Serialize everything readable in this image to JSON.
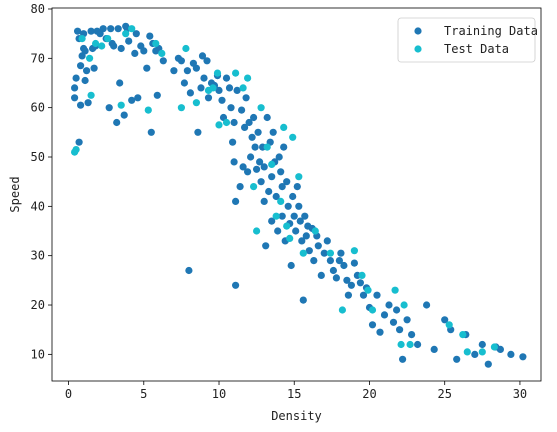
{
  "chart_data": {
    "type": "scatter",
    "title": "",
    "xlabel": "Density",
    "ylabel": "Speed",
    "xlim": [
      -1.1,
      31.4
    ],
    "ylim": [
      4.6,
      80.2
    ],
    "xticks": [
      0,
      5,
      10,
      15,
      20,
      25,
      30
    ],
    "yticks": [
      10,
      20,
      30,
      40,
      50,
      60,
      70,
      80
    ],
    "grid": false,
    "legend_position": "top-right",
    "series": [
      {
        "name": "Training Data",
        "color": "#1f77b4",
        "points": [
          [
            0.4,
            62
          ],
          [
            0.4,
            64
          ],
          [
            0.5,
            66
          ],
          [
            0.6,
            75.5
          ],
          [
            0.7,
            74
          ],
          [
            0.7,
            53
          ],
          [
            0.8,
            60.5
          ],
          [
            0.8,
            68.5
          ],
          [
            0.9,
            70.5
          ],
          [
            1.0,
            75
          ],
          [
            1.0,
            72
          ],
          [
            1.1,
            71.5
          ],
          [
            1.1,
            65.5
          ],
          [
            1.2,
            67.5
          ],
          [
            1.3,
            61
          ],
          [
            1.5,
            75.5
          ],
          [
            1.6,
            72
          ],
          [
            1.7,
            68
          ],
          [
            1.8,
            72.5
          ],
          [
            1.9,
            75.5
          ],
          [
            2.1,
            75
          ],
          [
            2.3,
            76
          ],
          [
            2.5,
            74
          ],
          [
            2.7,
            60
          ],
          [
            2.8,
            76
          ],
          [
            2.9,
            73
          ],
          [
            3.0,
            72.5
          ],
          [
            3.2,
            57
          ],
          [
            3.3,
            76
          ],
          [
            3.4,
            65
          ],
          [
            3.5,
            72
          ],
          [
            3.7,
            58.5
          ],
          [
            3.8,
            76.5
          ],
          [
            3.9,
            76
          ],
          [
            4.0,
            73.5
          ],
          [
            4.2,
            61.5
          ],
          [
            4.4,
            71
          ],
          [
            4.5,
            75
          ],
          [
            4.6,
            62
          ],
          [
            4.8,
            72.5
          ],
          [
            5.0,
            71.5
          ],
          [
            5.2,
            68
          ],
          [
            5.4,
            74.5
          ],
          [
            5.5,
            55
          ],
          [
            5.6,
            73
          ],
          [
            5.8,
            71.5
          ],
          [
            5.9,
            62.5
          ],
          [
            6.0,
            72
          ],
          [
            6.3,
            69.5
          ],
          [
            7.0,
            67.5
          ],
          [
            7.3,
            70
          ],
          [
            7.5,
            69.5
          ],
          [
            7.7,
            65
          ],
          [
            7.9,
            67.5
          ],
          [
            8.0,
            27
          ],
          [
            8.1,
            63
          ],
          [
            8.3,
            69
          ],
          [
            8.5,
            68
          ],
          [
            8.6,
            55
          ],
          [
            8.8,
            64
          ],
          [
            8.9,
            70.5
          ],
          [
            9.0,
            66
          ],
          [
            9.2,
            69.5
          ],
          [
            9.3,
            62
          ],
          [
            9.5,
            65
          ],
          [
            9.7,
            64.5
          ],
          [
            9.9,
            66.5
          ],
          [
            10.0,
            63.5
          ],
          [
            10.2,
            61.5
          ],
          [
            10.3,
            58
          ],
          [
            10.5,
            66
          ],
          [
            10.7,
            64
          ],
          [
            10.8,
            60
          ],
          [
            10.9,
            53
          ],
          [
            11.0,
            57
          ],
          [
            11.0,
            49
          ],
          [
            11.1,
            41
          ],
          [
            11.1,
            24
          ],
          [
            11.2,
            63.5
          ],
          [
            11.4,
            44
          ],
          [
            11.5,
            59.5
          ],
          [
            11.6,
            48
          ],
          [
            11.7,
            56
          ],
          [
            11.8,
            62
          ],
          [
            11.9,
            47
          ],
          [
            12.0,
            57
          ],
          [
            12.1,
            50
          ],
          [
            12.2,
            54
          ],
          [
            12.3,
            58
          ],
          [
            12.4,
            52
          ],
          [
            12.5,
            47.5
          ],
          [
            12.6,
            55
          ],
          [
            12.7,
            49
          ],
          [
            12.8,
            45
          ],
          [
            12.9,
            52
          ],
          [
            13.0,
            48
          ],
          [
            13.0,
            41
          ],
          [
            13.1,
            32
          ],
          [
            13.2,
            58
          ],
          [
            13.3,
            43
          ],
          [
            13.4,
            53
          ],
          [
            13.5,
            46
          ],
          [
            13.5,
            37
          ],
          [
            13.6,
            55
          ],
          [
            13.7,
            49
          ],
          [
            13.8,
            42
          ],
          [
            13.9,
            35
          ],
          [
            14.0,
            50
          ],
          [
            14.1,
            47
          ],
          [
            14.2,
            44
          ],
          [
            14.2,
            38
          ],
          [
            14.3,
            52
          ],
          [
            14.4,
            33
          ],
          [
            14.5,
            45
          ],
          [
            14.6,
            40
          ],
          [
            14.7,
            36.5
          ],
          [
            14.8,
            28
          ],
          [
            14.9,
            42
          ],
          [
            15.0,
            38
          ],
          [
            15.1,
            35
          ],
          [
            15.2,
            44
          ],
          [
            15.3,
            40
          ],
          [
            15.4,
            37
          ],
          [
            15.5,
            33
          ],
          [
            15.6,
            21
          ],
          [
            15.7,
            38
          ],
          [
            15.8,
            34
          ],
          [
            15.9,
            36
          ],
          [
            16.0,
            31
          ],
          [
            16.2,
            35.5
          ],
          [
            16.3,
            29
          ],
          [
            16.5,
            34
          ],
          [
            16.6,
            32
          ],
          [
            16.8,
            26
          ],
          [
            17.0,
            30.5
          ],
          [
            17.2,
            33
          ],
          [
            17.4,
            29
          ],
          [
            17.6,
            27
          ],
          [
            17.8,
            25.5
          ],
          [
            18.0,
            29
          ],
          [
            18.1,
            30.5
          ],
          [
            18.3,
            28
          ],
          [
            18.5,
            25
          ],
          [
            18.6,
            22
          ],
          [
            18.8,
            24
          ],
          [
            19.0,
            28.5
          ],
          [
            19.2,
            26
          ],
          [
            19.4,
            24.5
          ],
          [
            19.6,
            22
          ],
          [
            19.8,
            23.5
          ],
          [
            20.0,
            19.5
          ],
          [
            20.2,
            16
          ],
          [
            20.5,
            22
          ],
          [
            20.7,
            14.5
          ],
          [
            21.0,
            18
          ],
          [
            21.3,
            20
          ],
          [
            21.6,
            16.5
          ],
          [
            21.8,
            19
          ],
          [
            22.0,
            15
          ],
          [
            22.2,
            9
          ],
          [
            22.5,
            17
          ],
          [
            22.8,
            14
          ],
          [
            23.2,
            12
          ],
          [
            23.8,
            20
          ],
          [
            24.3,
            11
          ],
          [
            25.0,
            17
          ],
          [
            25.4,
            15
          ],
          [
            25.8,
            9
          ],
          [
            26.4,
            14
          ],
          [
            27.0,
            10
          ],
          [
            27.5,
            12
          ],
          [
            27.9,
            8
          ],
          [
            28.4,
            11.5
          ],
          [
            28.7,
            11
          ],
          [
            29.4,
            10
          ],
          [
            30.2,
            9.5
          ]
        ]
      },
      {
        "name": "Test Data",
        "color": "#17becf",
        "points": [
          [
            0.4,
            51
          ],
          [
            0.5,
            51.5
          ],
          [
            0.9,
            74
          ],
          [
            1.4,
            70
          ],
          [
            1.5,
            62.5
          ],
          [
            1.8,
            73
          ],
          [
            2.2,
            72.5
          ],
          [
            2.6,
            74
          ],
          [
            3.5,
            60.5
          ],
          [
            3.8,
            75
          ],
          [
            4.2,
            76
          ],
          [
            5.3,
            59.5
          ],
          [
            5.8,
            73
          ],
          [
            6.2,
            71
          ],
          [
            7.5,
            60
          ],
          [
            7.8,
            72
          ],
          [
            8.5,
            61
          ],
          [
            9.3,
            63.5
          ],
          [
            9.6,
            64
          ],
          [
            9.9,
            67
          ],
          [
            10.0,
            56.5
          ],
          [
            10.5,
            57
          ],
          [
            11.1,
            67
          ],
          [
            11.6,
            64
          ],
          [
            11.9,
            66
          ],
          [
            12.3,
            44
          ],
          [
            12.5,
            35
          ],
          [
            12.8,
            60
          ],
          [
            13.2,
            52
          ],
          [
            13.5,
            48.5
          ],
          [
            13.8,
            38
          ],
          [
            14.1,
            41
          ],
          [
            14.3,
            56
          ],
          [
            14.5,
            36
          ],
          [
            14.7,
            33.5
          ],
          [
            14.9,
            54
          ],
          [
            15.3,
            46
          ],
          [
            15.6,
            30.5
          ],
          [
            16.4,
            35
          ],
          [
            17.4,
            30.5
          ],
          [
            18.2,
            19
          ],
          [
            19.0,
            31
          ],
          [
            19.5,
            26
          ],
          [
            19.9,
            23
          ],
          [
            20.2,
            19
          ],
          [
            21.7,
            23
          ],
          [
            22.1,
            12
          ],
          [
            22.3,
            20
          ],
          [
            22.7,
            12
          ],
          [
            25.3,
            16
          ],
          [
            26.2,
            14
          ],
          [
            26.5,
            10.5
          ],
          [
            27.5,
            10.5
          ],
          [
            28.3,
            11.5
          ]
        ]
      }
    ]
  }
}
